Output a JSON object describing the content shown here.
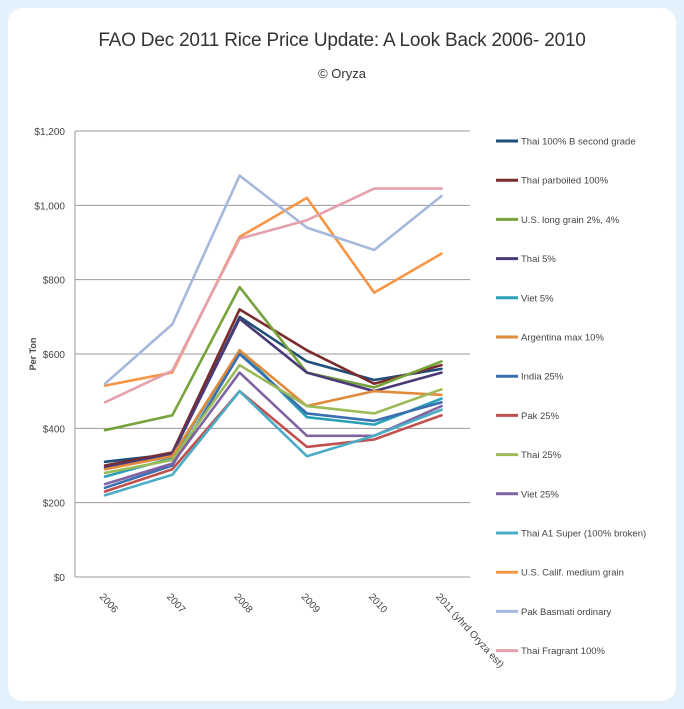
{
  "chart_data": {
    "type": "line",
    "title": "FAO Dec 2011 Rice Price Update: A Look Back 2006- 2010",
    "subtitle": "© Oryza",
    "ylabel": "Per Ton",
    "xlabel": "",
    "ylim": [
      0,
      1200
    ],
    "yticks": [
      "$0",
      "$200",
      "$400",
      "$600",
      "$800",
      "$1,000",
      "$1,200"
    ],
    "ytick_values": [
      0,
      200,
      400,
      600,
      800,
      1000,
      1200
    ],
    "categories": [
      "2006",
      "2007",
      "2008",
      "2009",
      "2010",
      "2011 (yhrd Oryza est)"
    ],
    "grid": "horizontal",
    "legend": "right",
    "series": [
      {
        "name": "Thai 100% B second grade",
        "color": "#1f4e79",
        "values": [
          310,
          330,
          700,
          580,
          530,
          560
        ]
      },
      {
        "name": "Thai parboiled 100%",
        "color": "#7b2c2c",
        "values": [
          300,
          335,
          720,
          610,
          520,
          570
        ]
      },
      {
        "name": "U.S. long grain 2%, 4%",
        "color": "#77a33c",
        "values": [
          395,
          435,
          780,
          550,
          510,
          580
        ]
      },
      {
        "name": "Thai 5%",
        "color": "#4b3a78",
        "values": [
          295,
          330,
          695,
          550,
          500,
          550
        ]
      },
      {
        "name": "Viet 5%",
        "color": "#2aa0b8",
        "values": [
          270,
          320,
          610,
          430,
          410,
          480
        ]
      },
      {
        "name": "Argentina max 10%",
        "color": "#e08a3c",
        "values": [
          290,
          325,
          610,
          460,
          500,
          490
        ]
      },
      {
        "name": "India 25%",
        "color": "#3a6fb0",
        "values": [
          240,
          300,
          600,
          440,
          420,
          470
        ]
      },
      {
        "name": "Pak 25%",
        "color": "#c0504d",
        "values": [
          230,
          290,
          500,
          350,
          370,
          435
        ]
      },
      {
        "name": "Thai 25%",
        "color": "#9bbb59",
        "values": [
          280,
          315,
          570,
          460,
          440,
          505
        ]
      },
      {
        "name": "Viet 25%",
        "color": "#8064a2",
        "values": [
          250,
          305,
          550,
          380,
          380,
          460
        ]
      },
      {
        "name": "Thai A1 Super (100% broken)",
        "color": "#4bacc6",
        "values": [
          220,
          275,
          500,
          325,
          380,
          450
        ]
      },
      {
        "name": "U.S. Calif. medium grain",
        "color": "#f79646",
        "values": [
          515,
          550,
          915,
          1020,
          765,
          870
        ]
      },
      {
        "name": "Pak Basmati ordinary",
        "color": "#a5b8dc",
        "values": [
          520,
          680,
          1080,
          940,
          880,
          1025
        ]
      },
      {
        "name": "Thai Fragrant 100%",
        "color": "#e4a0ad",
        "values": [
          470,
          555,
          910,
          960,
          1045,
          1045
        ]
      }
    ]
  }
}
